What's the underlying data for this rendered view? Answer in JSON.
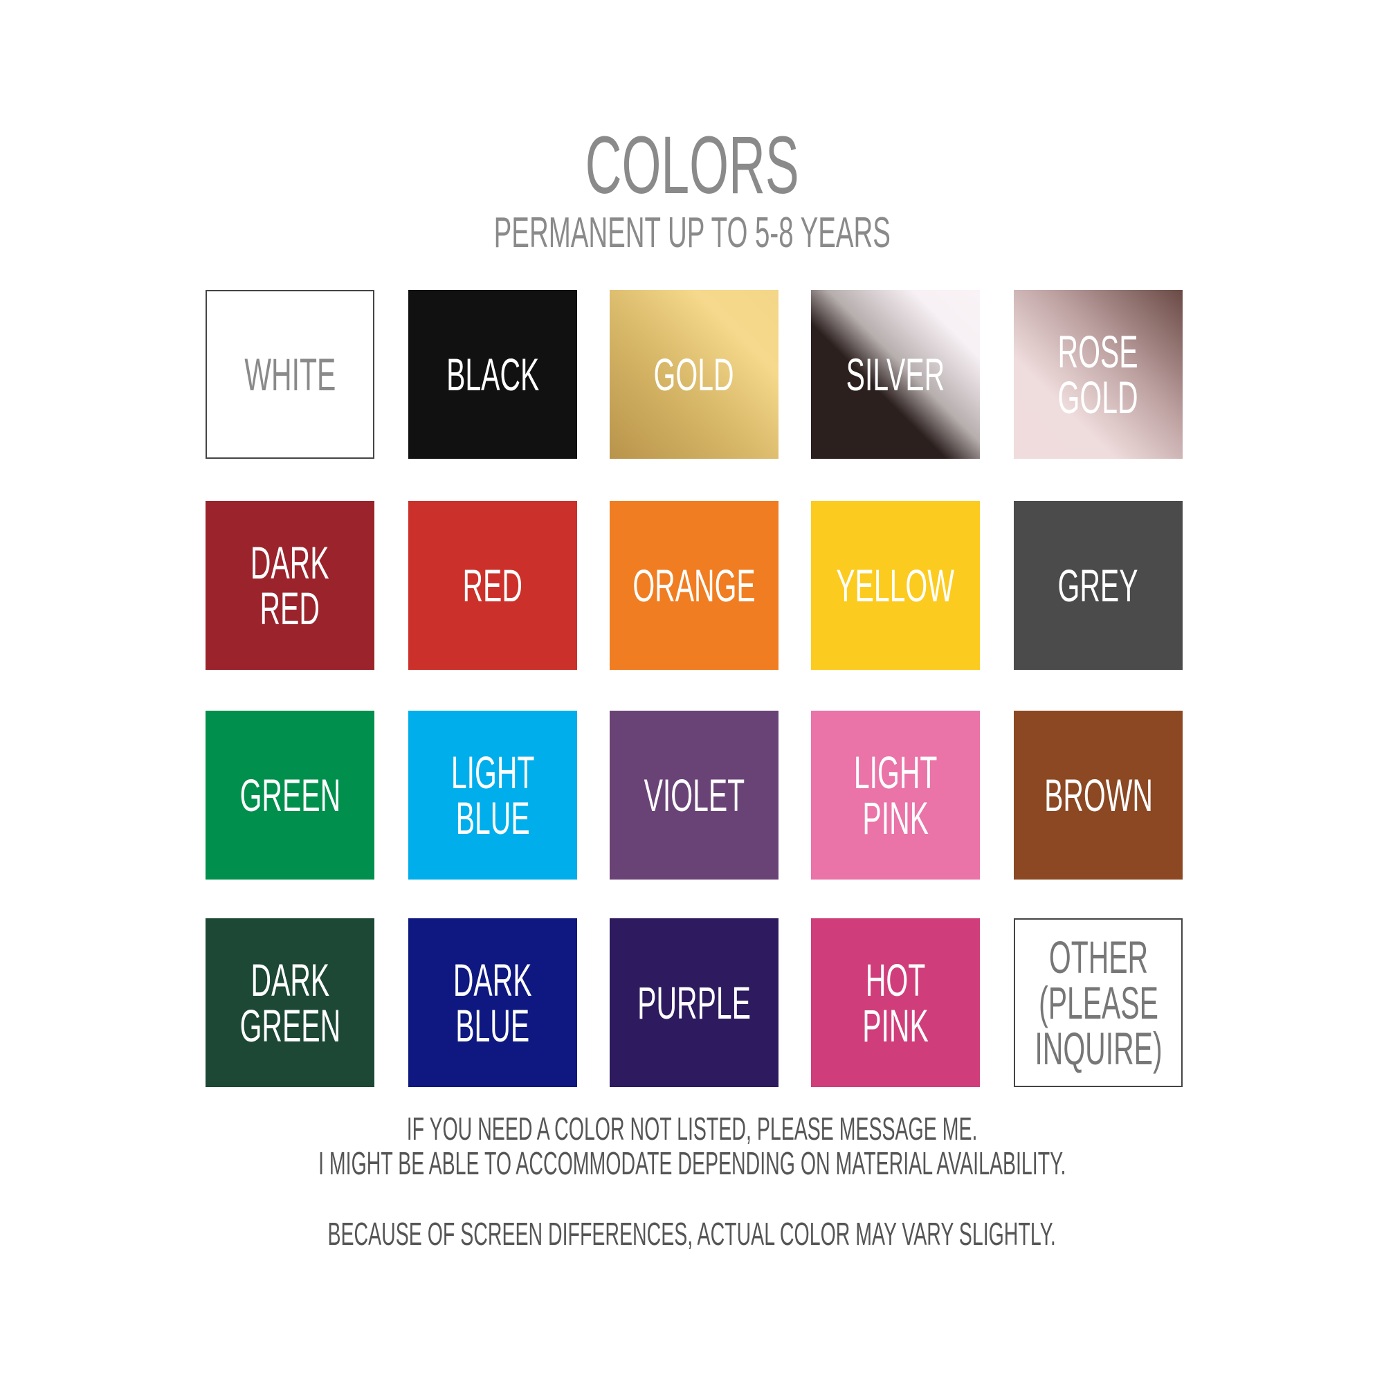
{
  "header": {
    "title": "COLORS",
    "subtitle": "PERMANENT UP TO 5-8 YEARS"
  },
  "swatches": [
    {
      "label": "WHITE",
      "color": "#ffffff",
      "text_color": "#8a8a8a",
      "bordered": true
    },
    {
      "label": "BLACK",
      "color": "#111111",
      "text_color": "#ffffff"
    },
    {
      "label": "GOLD",
      "color": "linear-gradient(45deg,#b8944a 0%,#d9b96a 45%,#f6d98c 75%,#f4d688 100%)",
      "text_color": "#ffffff"
    },
    {
      "label": "SILVER",
      "color": "linear-gradient(45deg,#2b201e 0%,#2b201e 40%,#b7aeae 55%,#f7f0f4 80%,#f9f3f6 100%)",
      "text_color": "#ffffff"
    },
    {
      "label": "ROSE\nGOLD",
      "color": "linear-gradient(45deg,#f0dcdc 0%,#efdcdc 30%,#bfa3a3 60%,#6a4a45 100%)",
      "text_color": "#ffffff"
    },
    {
      "label": "DARK\nRED",
      "color": "#9b232b",
      "text_color": "#ffffff"
    },
    {
      "label": "RED",
      "color": "#cc302a",
      "text_color": "#ffffff"
    },
    {
      "label": "ORANGE",
      "color": "#f07d22",
      "text_color": "#ffffff"
    },
    {
      "label": "YELLOW",
      "color": "#fccb1f",
      "text_color": "#ffffff"
    },
    {
      "label": "GREY",
      "color": "#4b4b4b",
      "text_color": "#ffffff"
    },
    {
      "label": "GREEN",
      "color": "#008f4c",
      "text_color": "#ffffff"
    },
    {
      "label": "LIGHT\nBLUE",
      "color": "#00aeec",
      "text_color": "#ffffff"
    },
    {
      "label": "VIOLET",
      "color": "#6a4376",
      "text_color": "#ffffff"
    },
    {
      "label": "LIGHT\nPINK",
      "color": "#ea73a8",
      "text_color": "#ffffff"
    },
    {
      "label": "BROWN",
      "color": "#8b4822",
      "text_color": "#ffffff"
    },
    {
      "label": "DARK\nGREEN",
      "color": "#1c4835",
      "text_color": "#ffffff"
    },
    {
      "label": "DARK\nBLUE",
      "color": "#0e1880",
      "text_color": "#ffffff"
    },
    {
      "label": "PURPLE",
      "color": "#2e1a5e",
      "text_color": "#ffffff"
    },
    {
      "label": "HOT\nPINK",
      "color": "#cf3e7a",
      "text_color": "#ffffff"
    },
    {
      "label": "OTHER\n(PLEASE\nINQUIRE)",
      "color": "#ffffff",
      "text_color": "#777777",
      "bordered": true
    }
  ],
  "footer": {
    "line1": "IF YOU NEED A COLOR NOT LISTED, PLEASE MESSAGE ME.",
    "line2": "I MIGHT BE ABLE TO ACCOMMODATE DEPENDING ON MATERIAL AVAILABILITY.",
    "line3": "BECAUSE OF SCREEN DIFFERENCES, ACTUAL COLOR MAY VARY SLIGHTLY."
  }
}
